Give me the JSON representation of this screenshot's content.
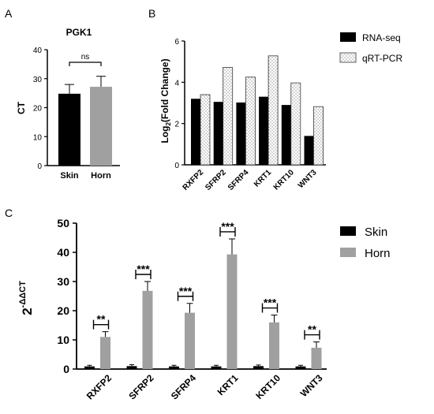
{
  "chart_data": [
    {
      "panel": "A",
      "type": "bar",
      "title": "PGK1",
      "ylabel": "CT",
      "xlabel": "",
      "categories": [
        "Skin",
        "Horn"
      ],
      "values": [
        24.8,
        27.2
      ],
      "errors": [
        3.2,
        3.6
      ],
      "colors": [
        "#000000",
        "#a0a0a0"
      ],
      "ylim": [
        0,
        40
      ],
      "yticks": [
        0,
        10,
        20,
        30,
        40
      ],
      "significance": [
        {
          "from": 0,
          "to": 1,
          "label": "ns"
        }
      ]
    },
    {
      "panel": "B",
      "type": "bar",
      "xlabel": "",
      "ylabel": "Log2(Fold Change)",
      "ylabel_base": "Log",
      "ylabel_sub": "2",
      "ylabel_rest": "(Fold Change)",
      "categories": [
        "RXFP2",
        "SFRP2",
        "SFRP4",
        "KRT1",
        "KRT10",
        "WNT3"
      ],
      "series": [
        {
          "name": "RNA-seq",
          "values": [
            3.2,
            3.05,
            3.02,
            3.3,
            2.9,
            1.4
          ],
          "color": "#000000",
          "pattern": "solid"
        },
        {
          "name": "qRT-PCR",
          "values": [
            3.4,
            4.72,
            4.25,
            5.28,
            3.97,
            2.82
          ],
          "color": "#ffffff",
          "pattern": "dotted"
        }
      ],
      "ylim": [
        0,
        6
      ],
      "yticks": [
        0,
        2,
        4,
        6
      ],
      "legend": "top-right"
    },
    {
      "panel": "C",
      "type": "bar",
      "xlabel": "",
      "ylabel": "2-ΔΔCT",
      "ylabel_base": "2",
      "ylabel_sup": "-ΔΔCT",
      "categories": [
        "RXFP2",
        "SFRP2",
        "SFRP4",
        "KRT1",
        "KRT10",
        "WNT3"
      ],
      "series": [
        {
          "name": "Skin",
          "values": [
            0.9,
            1.0,
            0.9,
            0.9,
            1.0,
            0.9
          ],
          "errors": [
            0.4,
            0.5,
            0.4,
            0.4,
            0.4,
            0.4
          ],
          "color": "#000000"
        },
        {
          "name": "Horn",
          "values": [
            11.0,
            26.8,
            19.3,
            39.3,
            16.0,
            7.3
          ],
          "errors": [
            1.8,
            3.2,
            3.2,
            5.3,
            2.5,
            2.0
          ],
          "color": "#a0a0a0"
        }
      ],
      "significance": [
        "**",
        "***",
        "***",
        "***",
        "***",
        "**"
      ],
      "ylim": [
        0,
        50
      ],
      "yticks": [
        0,
        10,
        20,
        30,
        40,
        50
      ],
      "legend": "top-right"
    }
  ],
  "panel_labels": [
    "A",
    "B",
    "C"
  ]
}
